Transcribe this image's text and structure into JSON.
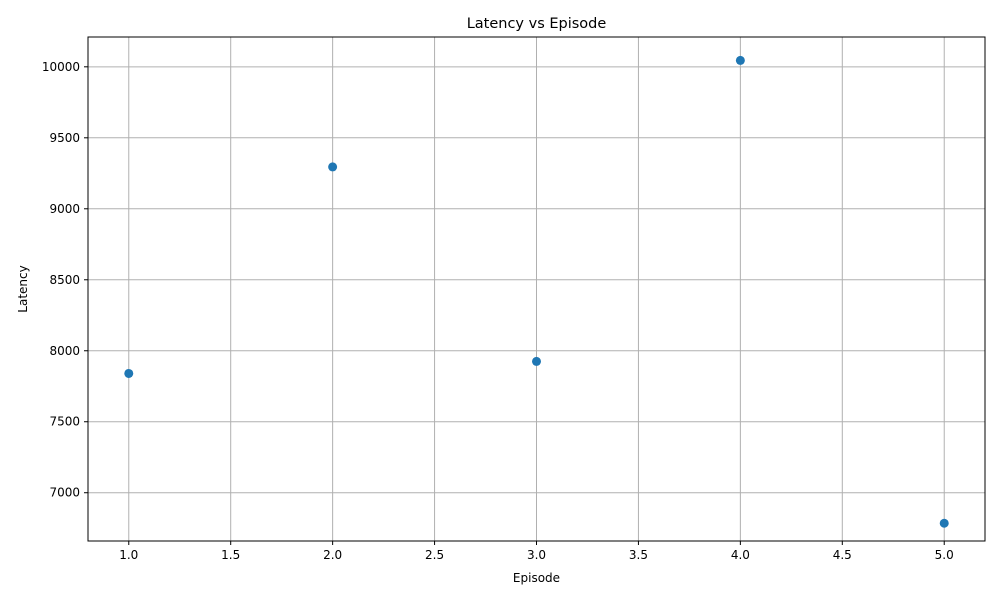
{
  "chart_data": {
    "type": "scatter",
    "title": "Latency vs Episode",
    "xlabel": "Episode",
    "ylabel": "Latency",
    "x": [
      1,
      2,
      3,
      4,
      5
    ],
    "series": [
      {
        "values": [
          7840,
          9295,
          7925,
          10045,
          6785
        ]
      }
    ],
    "xlim": [
      0.8,
      5.2
    ],
    "ylim": [
      6660,
      10210
    ],
    "xticks": [
      1.0,
      1.5,
      2.0,
      2.5,
      3.0,
      3.5,
      4.0,
      4.5,
      5.0
    ],
    "xtick_labels": [
      "1.0",
      "1.5",
      "2.0",
      "2.5",
      "3.0",
      "3.5",
      "4.0",
      "4.5",
      "5.0"
    ],
    "yticks": [
      7000,
      7500,
      8000,
      8500,
      9000,
      9500,
      10000
    ],
    "ytick_labels": [
      "7000",
      "7500",
      "8000",
      "8500",
      "9000",
      "9500",
      "10000"
    ],
    "grid": true,
    "colors": {
      "marker": "#1f77b4",
      "grid": "#b0b0b0",
      "axes": "#000000"
    }
  }
}
